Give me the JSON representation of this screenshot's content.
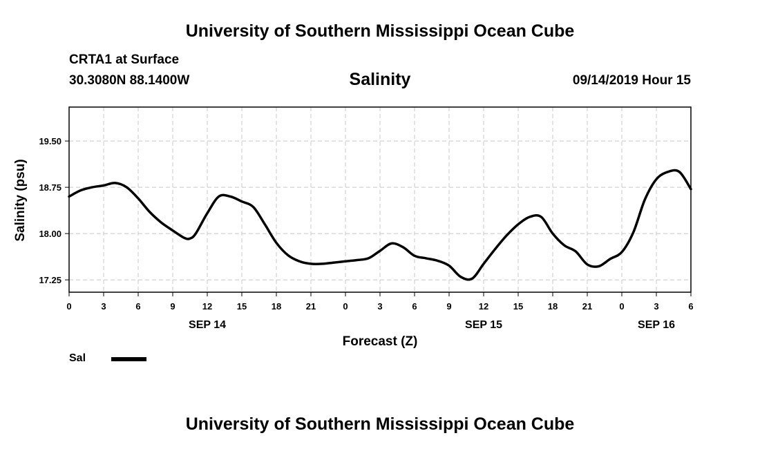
{
  "header": {
    "org_title": "University of Southern Mississippi Ocean Cube",
    "station": "CRTA1 at Surface",
    "coordinates": "30.3080N 88.1400W",
    "forecast_time": "09/14/2019 Hour 15"
  },
  "footer": {
    "org_title": "University of Southern Mississippi Ocean Cube"
  },
  "legend": {
    "label": "Sal",
    "color": "#000000"
  },
  "chart_data": {
    "type": "line",
    "title": "Salinity",
    "xlabel": "Forecast (Z)",
    "ylabel": "Salinity (psu)",
    "xlim": [
      0,
      54
    ],
    "ylim": [
      17.05,
      20.05
    ],
    "yticks": [
      17.25,
      18.0,
      18.75,
      19.5
    ],
    "ytick_labels": [
      "17.25",
      "18.00",
      "18.75",
      "19.50"
    ],
    "xticks": [
      0,
      3,
      6,
      9,
      12,
      15,
      18,
      21,
      24,
      27,
      30,
      33,
      36,
      39,
      42,
      45,
      48,
      51,
      54
    ],
    "xtick_labels": [
      "0",
      "3",
      "6",
      "9",
      "12",
      "15",
      "18",
      "21",
      "0",
      "3",
      "6",
      "9",
      "12",
      "15",
      "18",
      "21",
      "0",
      "3",
      "6"
    ],
    "date_labels": [
      {
        "x": 12,
        "text": "SEP 14"
      },
      {
        "x": 36,
        "text": "SEP 15"
      },
      {
        "x": 51,
        "text": "SEP 16"
      }
    ],
    "grid": true,
    "series": [
      {
        "name": "Sal",
        "color": "#000000",
        "x": [
          0,
          1,
          2,
          3,
          4,
          5,
          6,
          7,
          8,
          9,
          10,
          10.5,
          11,
          12,
          13,
          14,
          15,
          16,
          17,
          18,
          19,
          20,
          21,
          22,
          23,
          24,
          25,
          26,
          27,
          28,
          29,
          30,
          31,
          32,
          33,
          34,
          35,
          36,
          37,
          38,
          39,
          40,
          41,
          42,
          43,
          44,
          45,
          46,
          47,
          48,
          49,
          50,
          51,
          52,
          53,
          54
        ],
        "values": [
          18.6,
          18.7,
          18.75,
          18.78,
          18.82,
          18.75,
          18.57,
          18.35,
          18.18,
          18.05,
          17.93,
          17.92,
          18.0,
          18.33,
          18.6,
          18.6,
          18.52,
          18.43,
          18.15,
          17.85,
          17.65,
          17.55,
          17.51,
          17.51,
          17.53,
          17.55,
          17.57,
          17.6,
          17.72,
          17.84,
          17.78,
          17.64,
          17.6,
          17.56,
          17.48,
          17.3,
          17.27,
          17.51,
          17.75,
          17.97,
          18.15,
          18.27,
          18.27,
          18.0,
          17.81,
          17.71,
          17.5,
          17.47,
          17.59,
          17.7,
          18.02,
          18.55,
          18.88,
          19.0,
          19.0,
          18.72
        ]
      }
    ]
  }
}
